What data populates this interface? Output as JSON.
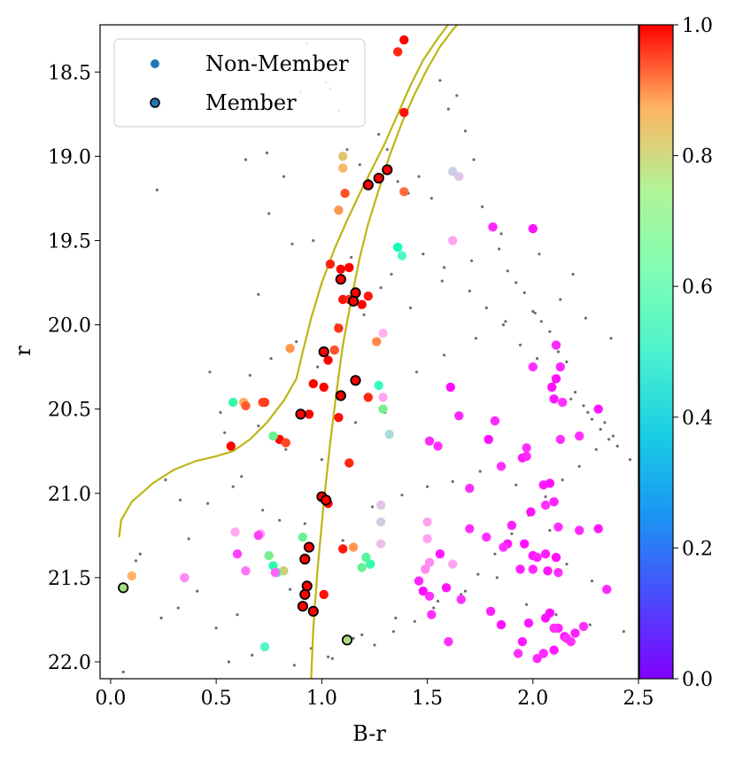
{
  "chart_data": {
    "type": "scatter",
    "xlabel": "B-r",
    "ylabel": "r",
    "xlim": [
      -0.05,
      2.5
    ],
    "ylim": [
      18.22,
      22.1
    ],
    "y_inverted": true,
    "x_ticks": [
      0.0,
      0.5,
      1.0,
      1.5,
      2.0,
      2.5
    ],
    "x_tick_labels": [
      "0.0",
      "0.5",
      "1.0",
      "1.5",
      "2.0",
      "2.5"
    ],
    "y_ticks": [
      18.5,
      19.0,
      19.5,
      20.0,
      20.5,
      21.0,
      21.5,
      22.0
    ],
    "y_tick_labels": [
      "18.5",
      "19.0",
      "19.5",
      "20.0",
      "20.5",
      "21.0",
      "21.5",
      "22.0"
    ],
    "colorbar": {
      "colormap": "rainbow",
      "range": [
        0,
        1
      ],
      "ticks": [
        0.0,
        0.2,
        0.4,
        0.6,
        0.8,
        1.0
      ],
      "tick_labels": [
        "0.0",
        "0.2",
        "0.4",
        "0.6",
        "0.8",
        "1.0"
      ]
    },
    "legend": {
      "placement": "top-left",
      "entries": [
        {
          "label": "Non-Member",
          "color": "#1f77b4",
          "edge": "none"
        },
        {
          "label": "Member",
          "color": "#1f77b4",
          "edge": "#000000"
        }
      ]
    },
    "isochrones": [
      {
        "name": "isochrone-giant-branch",
        "color": "#bdb614",
        "x": [
          0.04,
          0.05,
          0.1,
          0.2,
          0.3,
          0.4,
          0.5,
          0.58,
          0.66,
          0.74,
          0.82,
          0.88,
          0.91,
          0.95,
          1.0,
          1.06,
          1.12,
          1.18,
          1.24,
          1.3,
          1.36,
          1.42,
          1.48,
          1.55,
          1.61
        ],
        "y": [
          21.26,
          21.16,
          21.05,
          20.94,
          20.86,
          20.81,
          20.78,
          20.75,
          20.68,
          20.58,
          20.45,
          20.32,
          20.16,
          19.96,
          19.75,
          19.55,
          19.38,
          19.22,
          19.07,
          18.92,
          18.75,
          18.58,
          18.43,
          18.3,
          18.2
        ]
      },
      {
        "name": "isochrone-main-sequence",
        "color": "#bdb614",
        "x": [
          0.95,
          0.96,
          0.98,
          1.01,
          1.04,
          1.07,
          1.1,
          1.14,
          1.18,
          1.22,
          1.27,
          1.32,
          1.38,
          1.44,
          1.5,
          1.56,
          1.62,
          1.67
        ],
        "y": [
          22.1,
          21.8,
          21.45,
          21.05,
          20.7,
          20.4,
          20.12,
          19.85,
          19.6,
          19.4,
          19.2,
          19.0,
          18.8,
          18.63,
          18.48,
          18.35,
          18.25,
          18.18
        ]
      }
    ],
    "members": {
      "x": [
        1.31,
        1.27,
        1.22,
        1.16,
        1.09,
        1.15,
        1.01,
        0.9,
        1.09,
        1.16,
        1.0,
        1.02,
        0.94,
        0.92,
        0.93,
        0.92,
        0.91,
        0.96,
        0.06,
        1.12
      ],
      "y": [
        19.08,
        19.13,
        19.17,
        19.81,
        19.73,
        19.86,
        20.16,
        20.53,
        20.42,
        20.33,
        21.02,
        21.04,
        21.32,
        21.39,
        21.55,
        21.6,
        21.67,
        21.7,
        21.56,
        21.87
      ],
      "p": [
        1.0,
        1.0,
        1.0,
        1.0,
        1.0,
        1.0,
        1.0,
        1.0,
        1.0,
        1.0,
        1.0,
        1.0,
        1.0,
        1.0,
        1.0,
        1.0,
        1.0,
        1.0,
        0.66,
        0.66
      ]
    },
    "non_members": {
      "x": [
        1.39,
        1.36,
        1.39,
        1.1,
        1.1,
        1.11,
        1.39,
        1.08,
        1.04,
        1.09,
        1.13,
        1.1,
        1.13,
        1.19,
        1.22,
        1.26,
        1.08,
        1.06,
        1.03,
        1.01,
        1.29,
        1.27,
        1.22,
        0.96,
        0.85,
        0.94,
        0.72,
        0.63,
        0.64,
        0.73,
        0.8,
        0.77,
        0.83,
        0.57,
        0.58,
        1.08,
        1.13,
        1.03,
        1.1,
        1.15,
        1.01,
        0.1,
        0.82,
        0.75,
        0.79,
        0.77,
        0.91,
        1.28,
        1.23,
        1.19,
        1.21,
        1.36,
        1.38,
        1.62,
        1.65,
        1.62,
        1.29,
        1.29,
        1.32,
        1.28,
        1.28,
        1.5,
        1.5,
        1.51,
        1.49,
        1.62,
        0.59,
        0.6,
        0.71,
        0.64,
        0.35,
        0.73,
        0.7,
        0.78,
        1.81,
        2.0,
        2.11,
        2.13,
        2.09,
        2.1,
        2.11,
        2.14,
        2.31,
        2.0,
        1.97,
        2.13,
        2.22,
        1.82,
        1.79,
        1.7,
        1.65,
        1.56,
        1.61,
        1.55,
        1.51,
        1.95,
        1.97,
        2.05,
        2.08,
        2.1,
        1.85,
        1.9,
        1.99,
        2.06,
        2.12,
        2.22,
        2.31,
        1.7,
        1.78,
        1.88,
        1.96,
        2.0,
        2.02,
        2.06,
        2.11,
        1.86,
        1.94,
        2.0,
        2.07,
        2.12,
        1.46,
        1.48,
        1.51,
        1.52,
        1.6,
        1.59,
        1.66,
        1.8,
        1.85,
        1.95,
        2.02,
        2.08,
        2.12,
        2.15,
        2.18,
        2.2,
        2.1,
        2.24,
        2.05,
        1.98,
        2.06,
        2.1,
        2.16,
        2.35,
        1.93
      ],
      "y": [
        18.31,
        18.38,
        18.74,
        19.0,
        19.07,
        19.22,
        19.21,
        19.32,
        19.64,
        19.67,
        19.66,
        19.85,
        19.85,
        19.88,
        19.83,
        20.1,
        20.02,
        20.15,
        20.21,
        20.37,
        20.5,
        20.36,
        20.43,
        20.35,
        20.14,
        20.53,
        20.46,
        20.46,
        20.48,
        20.46,
        20.68,
        20.66,
        20.7,
        20.72,
        20.46,
        20.55,
        20.82,
        21.06,
        21.33,
        21.32,
        21.6,
        21.49,
        21.46,
        21.37,
        21.47,
        21.43,
        21.26,
        21.17,
        21.42,
        21.44,
        21.38,
        19.54,
        19.59,
        19.09,
        19.12,
        19.5,
        20.05,
        20.43,
        20.65,
        21.07,
        21.3,
        21.27,
        21.17,
        21.41,
        21.45,
        21.42,
        21.23,
        21.36,
        21.24,
        21.46,
        21.5,
        21.91,
        21.25,
        21.47,
        19.42,
        19.43,
        20.12,
        20.25,
        20.37,
        20.44,
        20.32,
        20.46,
        20.5,
        20.25,
        20.73,
        20.68,
        20.66,
        20.57,
        20.68,
        20.97,
        20.54,
        21.36,
        20.37,
        20.72,
        20.69,
        20.79,
        20.78,
        20.95,
        20.94,
        21.05,
        20.84,
        21.19,
        21.11,
        21.07,
        21.2,
        21.22,
        21.21,
        21.21,
        21.26,
        21.3,
        21.3,
        21.37,
        21.38,
        21.36,
        21.38,
        21.32,
        21.45,
        21.45,
        21.46,
        21.47,
        21.52,
        21.58,
        21.61,
        21.72,
        21.88,
        21.56,
        21.63,
        21.7,
        21.78,
        21.88,
        21.98,
        21.71,
        21.8,
        21.85,
        21.88,
        21.83,
        21.93,
        21.79,
        21.95,
        21.77,
        21.74,
        21.8,
        21.86,
        21.57,
        21.95
      ],
      "p": [
        1.0,
        0.95,
        0.98,
        0.72,
        0.74,
        0.9,
        0.86,
        0.8,
        0.96,
        1.0,
        1.0,
        0.98,
        0.95,
        1.0,
        0.97,
        0.82,
        0.94,
        0.9,
        1.0,
        1.0,
        0.62,
        0.45,
        0.95,
        1.0,
        0.8,
        1.0,
        0.9,
        0.76,
        0.88,
        0.92,
        0.99,
        0.6,
        0.91,
        1.0,
        0.55,
        0.98,
        0.95,
        1.0,
        0.97,
        0.8,
        0.98,
        0.75,
        0.7,
        0.62,
        0.6,
        0.54,
        0.6,
        0.3,
        0.55,
        0.6,
        0.58,
        0.48,
        0.42,
        0.3,
        0.28,
        0.22,
        0.25,
        0.22,
        0.33,
        0.28,
        0.27,
        0.22,
        0.22,
        0.18,
        0.18,
        0.22,
        0.23,
        0.08,
        0.22,
        0.15,
        0.18,
        0.42,
        0.08,
        0.13,
        0.05,
        0.02,
        0.05,
        0.05,
        0.02,
        0.03,
        0.02,
        0.06,
        0.03,
        0.06,
        0.06,
        0.06,
        0.06,
        0.05,
        0.02,
        0.06,
        0.05,
        0.03,
        0.02,
        0.06,
        0.05,
        0.03,
        0.05,
        0.03,
        0.02,
        0.04,
        0.06,
        0.04,
        0.02,
        0.06,
        0.06,
        0.05,
        0.03,
        0.06,
        0.06,
        0.03,
        0.02,
        0.02,
        0.04,
        0.04,
        0.02,
        0.06,
        0.04,
        0.05,
        0.03,
        0.06,
        0.04,
        0.02,
        0.06,
        0.06,
        0.06,
        0.02,
        0.06,
        0.04,
        0.02,
        0.03,
        0.05,
        0.02,
        0.04,
        0.02,
        0.06,
        0.04,
        0.03,
        0.06,
        0.05,
        0.03,
        0.02,
        0.06,
        0.06,
        0.05,
        0.06
      ]
    },
    "background_stars_note": "unmeasured field stars, small grey points",
    "background_stars": {
      "x": [
        0.06,
        0.12,
        0.22,
        0.26,
        0.33,
        0.41,
        0.52,
        0.56,
        0.6,
        0.64,
        0.68,
        0.7,
        0.74,
        0.78,
        0.82,
        0.86,
        0.9,
        0.93,
        0.97,
        1.02,
        1.04,
        1.08,
        1.12,
        1.18,
        1.22,
        1.27,
        1.31,
        1.36,
        1.41,
        1.46,
        1.52,
        1.56,
        1.6,
        1.64,
        1.68,
        1.72,
        1.76,
        1.8,
        1.84,
        1.88,
        1.92,
        1.96,
        2.0,
        2.04,
        2.08,
        2.12,
        2.16,
        2.2,
        2.24,
        2.28,
        2.32,
        2.36,
        2.4,
        2.46,
        0.14,
        0.24,
        0.37,
        0.46,
        0.58,
        0.72,
        0.85,
        0.95,
        1.05,
        1.15,
        1.25,
        1.34,
        1.44,
        1.55,
        1.66,
        1.74,
        1.82,
        1.9,
        1.98,
        2.06,
        2.14,
        2.22,
        2.3,
        2.38,
        0.66,
        0.76,
        0.88,
        0.98,
        1.07,
        1.2,
        1.33,
        1.48,
        1.58,
        1.7,
        1.78,
        1.86,
        1.94,
        2.02,
        2.1,
        2.18,
        2.26,
        2.34,
        0.54,
        0.62,
        0.8,
        0.92,
        1.1,
        1.24,
        1.38,
        1.5,
        1.62,
        1.75,
        1.92,
        2.08,
        2.16,
        2.28,
        0.47,
        0.7,
        0.83,
        1.0,
        1.16,
        1.3,
        1.45,
        1.58,
        1.73,
        1.87,
        2.01,
        2.13,
        2.25,
        2.37,
        0.32,
        0.5,
        0.67,
        0.87,
        1.03,
        1.19,
        1.35,
        1.53,
        1.68,
        1.83,
        1.97,
        2.11,
        2.27,
        2.43,
        0.75,
        0.96,
        1.14,
        1.28,
        1.42,
        1.57,
        1.71,
        1.85,
        2.03,
        2.19
      ],
      "y": [
        22.06,
        21.4,
        19.2,
        20.92,
        21.04,
        21.58,
        20.52,
        22.0,
        21.72,
        19.02,
        18.42,
        19.82,
        18.98,
        18.7,
        19.12,
        19.52,
        18.62,
        18.33,
        18.47,
        18.56,
        18.6,
        18.73,
        18.96,
        19.05,
        19.14,
        18.87,
        18.96,
        19.15,
        19.22,
        19.12,
        19.25,
        18.55,
        18.72,
        18.64,
        18.85,
        19.02,
        19.3,
        19.42,
        19.55,
        19.68,
        19.75,
        19.81,
        19.92,
        19.98,
        20.04,
        20.16,
        20.22,
        20.4,
        20.48,
        20.56,
        20.62,
        20.68,
        20.72,
        20.8,
        21.36,
        21.74,
        21.27,
        21.06,
        20.96,
        21.1,
        21.57,
        21.92,
        21.98,
        21.86,
        21.9,
        21.82,
        21.76,
        21.64,
        21.6,
        21.48,
        21.36,
        21.24,
        21.13,
        21.02,
        20.92,
        20.84,
        20.74,
        20.66,
        20.3,
        20.2,
        20.1,
        20.25,
        20.0,
        19.94,
        19.7,
        19.58,
        19.66,
        19.8,
        19.9,
        20.0,
        20.12,
        20.2,
        20.34,
        20.44,
        20.52,
        20.58,
        20.64,
        20.9,
        21.16,
        21.18,
        21.28,
        21.08,
        21.01,
        20.96,
        20.93,
        20.87,
        20.95,
        21.22,
        21.42,
        21.52,
        20.28,
        20.6,
        20.74,
        20.8,
        20.58,
        20.52,
        20.28,
        20.18,
        20.08,
        19.98,
        19.93,
        19.85,
        19.96,
        20.08,
        21.68,
        21.8,
        21.96,
        22.02,
        21.97,
        21.84,
        21.74,
        21.68,
        21.58,
        21.5,
        21.66,
        21.72,
        21.78,
        21.82,
        19.34,
        19.5,
        19.6,
        19.78,
        19.9,
        19.74,
        19.62,
        19.46,
        19.58,
        19.7
      ]
    }
  }
}
